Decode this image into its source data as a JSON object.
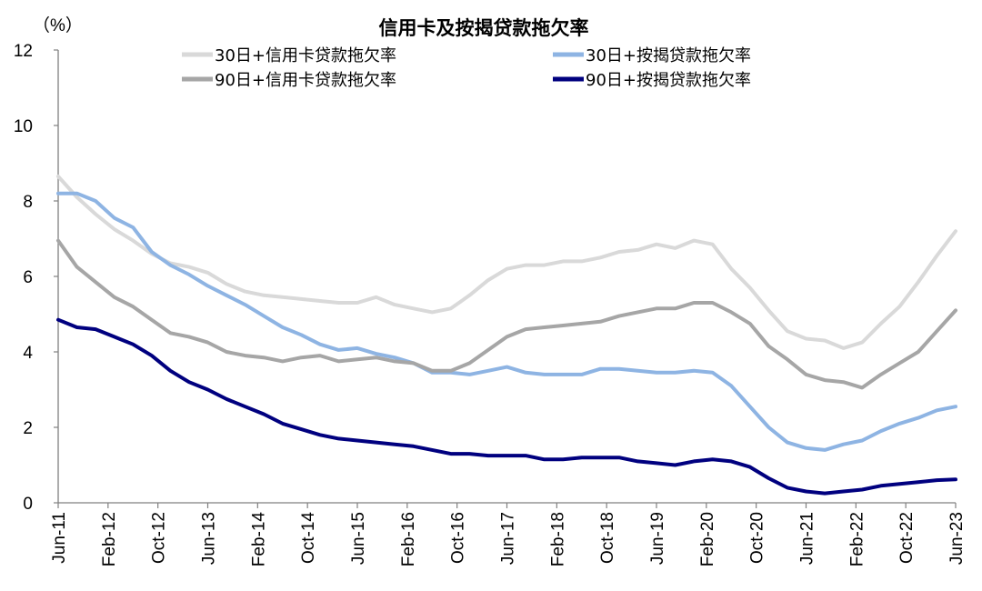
{
  "chart_data": {
    "type": "line",
    "title": "信用卡及按揭贷款拖欠率",
    "ylabel": "（%）",
    "ylim": [
      0,
      12
    ],
    "yticks": [
      0,
      2,
      4,
      6,
      8,
      10,
      12
    ],
    "x_tick_labels": [
      "Jun-11",
      "Feb-12",
      "Oct-12",
      "Jun-13",
      "Feb-14",
      "Oct-14",
      "Jun-15",
      "Feb-16",
      "Oct-16",
      "Jun-17",
      "Feb-18",
      "Oct-18",
      "Jun-19",
      "Feb-20",
      "Oct-20",
      "Jun-21",
      "Feb-22",
      "Oct-22",
      "Jun-23"
    ],
    "grid": false,
    "legend_position": "top",
    "x": [
      "2011Q2",
      "2011Q3",
      "2011Q4",
      "2012Q1",
      "2012Q2",
      "2012Q3",
      "2012Q4",
      "2013Q1",
      "2013Q2",
      "2013Q3",
      "2013Q4",
      "2014Q1",
      "2014Q2",
      "2014Q3",
      "2014Q4",
      "2015Q1",
      "2015Q2",
      "2015Q3",
      "2015Q4",
      "2016Q1",
      "2016Q2",
      "2016Q3",
      "2016Q4",
      "2017Q1",
      "2017Q2",
      "2017Q3",
      "2017Q4",
      "2018Q1",
      "2018Q2",
      "2018Q3",
      "2018Q4",
      "2019Q1",
      "2019Q2",
      "2019Q3",
      "2019Q4",
      "2020Q1",
      "2020Q2",
      "2020Q3",
      "2020Q4",
      "2021Q1",
      "2021Q2",
      "2021Q3",
      "2021Q4",
      "2022Q1",
      "2022Q2",
      "2022Q3",
      "2022Q4",
      "2023Q1",
      "2023Q2"
    ],
    "series": [
      {
        "name": "30日+信用卡贷款拖欠率",
        "color": "#d9d9d9",
        "values": [
          8.65,
          8.1,
          7.65,
          7.25,
          6.95,
          6.6,
          6.35,
          6.25,
          6.1,
          5.8,
          5.6,
          5.5,
          5.45,
          5.4,
          5.35,
          5.3,
          5.3,
          5.45,
          5.25,
          5.15,
          5.05,
          5.15,
          5.5,
          5.9,
          6.2,
          6.3,
          6.3,
          6.4,
          6.4,
          6.5,
          6.65,
          6.7,
          6.85,
          6.75,
          6.95,
          6.85,
          6.2,
          5.7,
          5.1,
          4.55,
          4.35,
          4.3,
          4.1,
          4.25,
          4.75,
          5.2,
          5.85,
          6.55,
          7.2
        ]
      },
      {
        "name": "30日+按揭贷款拖欠率",
        "color": "#8eb4e3",
        "values": [
          8.2,
          8.2,
          8.0,
          7.55,
          7.3,
          6.65,
          6.3,
          6.05,
          5.75,
          5.5,
          5.25,
          4.95,
          4.65,
          4.45,
          4.2,
          4.05,
          4.1,
          3.95,
          3.85,
          3.7,
          3.45,
          3.45,
          3.4,
          3.5,
          3.6,
          3.45,
          3.4,
          3.4,
          3.4,
          3.55,
          3.55,
          3.5,
          3.45,
          3.45,
          3.5,
          3.45,
          3.1,
          2.55,
          2.0,
          1.6,
          1.45,
          1.4,
          1.55,
          1.65,
          1.9,
          2.1,
          2.25,
          2.45,
          2.55
        ]
      },
      {
        "name": "90日+信用卡贷款拖欠率",
        "color": "#a6a6a6",
        "values": [
          6.95,
          6.25,
          5.85,
          5.45,
          5.2,
          4.85,
          4.5,
          4.4,
          4.25,
          4.0,
          3.9,
          3.85,
          3.75,
          3.85,
          3.9,
          3.75,
          3.8,
          3.85,
          3.75,
          3.7,
          3.5,
          3.5,
          3.7,
          4.05,
          4.4,
          4.6,
          4.65,
          4.7,
          4.75,
          4.8,
          4.95,
          5.05,
          5.15,
          5.15,
          5.3,
          5.3,
          5.05,
          4.75,
          4.15,
          3.8,
          3.4,
          3.25,
          3.2,
          3.05,
          3.4,
          3.7,
          4.0,
          4.55,
          5.1
        ]
      },
      {
        "name": "90日+按揭贷款拖欠率",
        "color": "#00007f",
        "values": [
          4.85,
          4.65,
          4.6,
          4.4,
          4.2,
          3.9,
          3.5,
          3.2,
          3.0,
          2.75,
          2.55,
          2.35,
          2.1,
          1.95,
          1.8,
          1.7,
          1.65,
          1.6,
          1.55,
          1.5,
          1.4,
          1.3,
          1.3,
          1.25,
          1.25,
          1.25,
          1.15,
          1.15,
          1.2,
          1.2,
          1.2,
          1.1,
          1.05,
          1.0,
          1.1,
          1.15,
          1.1,
          0.95,
          0.65,
          0.4,
          0.3,
          0.25,
          0.3,
          0.35,
          0.45,
          0.5,
          0.55,
          0.6,
          0.62
        ]
      }
    ]
  }
}
